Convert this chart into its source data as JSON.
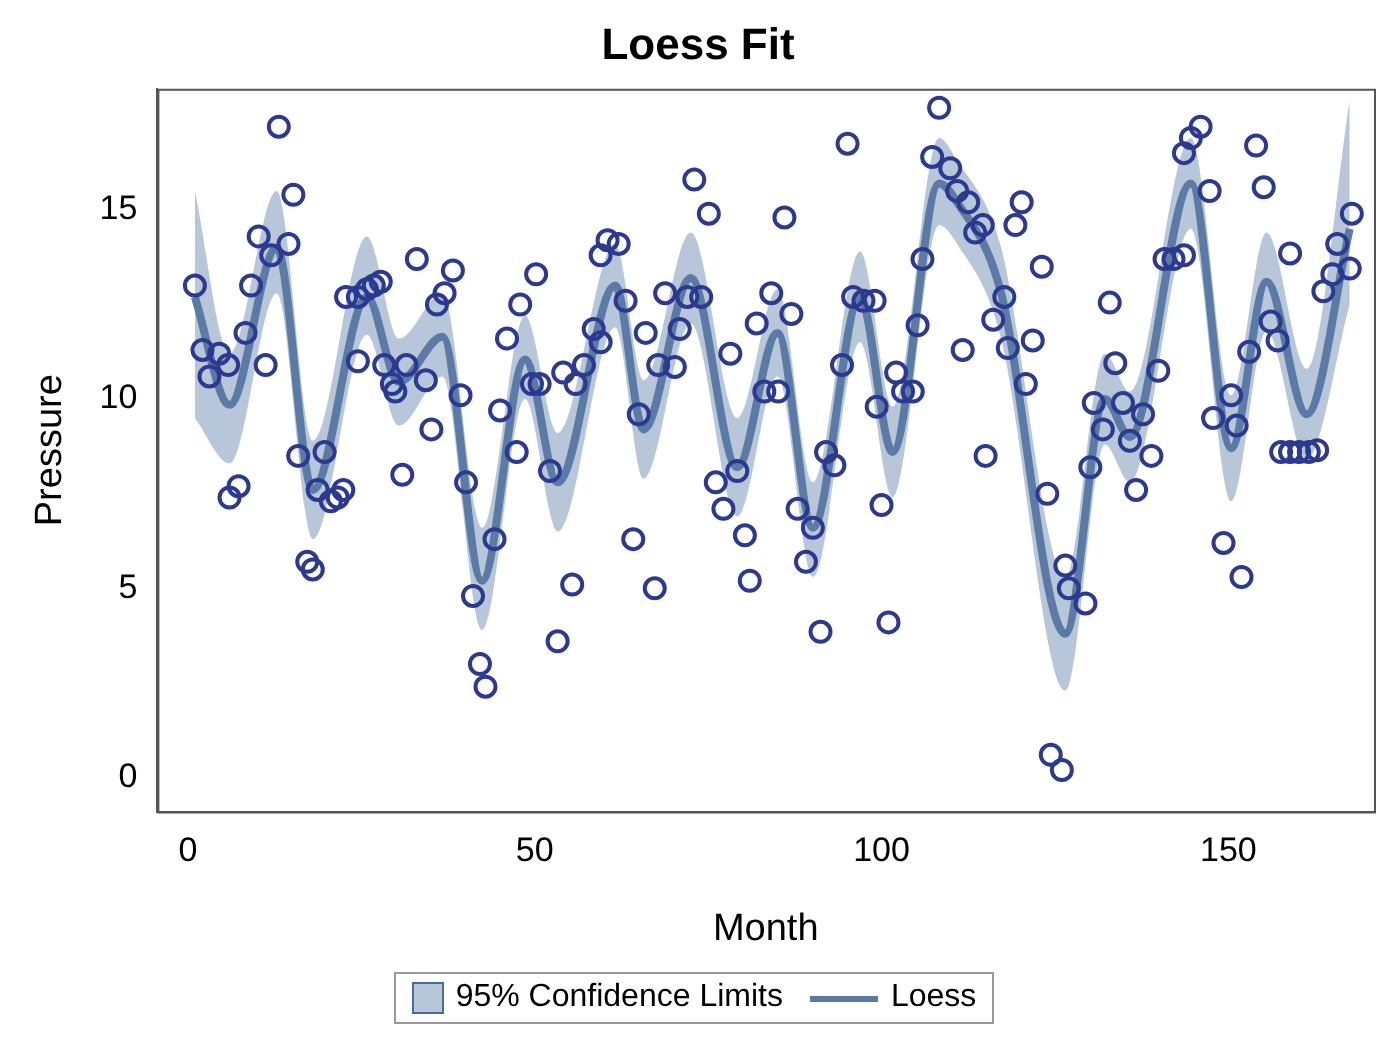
{
  "chart_data": {
    "type": "scatter",
    "title": "Loess Fit",
    "xlabel": "Month",
    "ylabel": "Pressure",
    "xlim": [
      -4.4,
      171
    ],
    "xticks": [
      0,
      50,
      100,
      150
    ],
    "ylim": [
      -0.9,
      18.2
    ],
    "yticks": [
      0,
      5,
      10,
      15
    ],
    "grid": false,
    "legend": "bottom",
    "annotations": [
      "95% Confidence Limits"
    ],
    "series": [
      {
        "color": "#2b3990",
        "marker": "circle",
        "x": [
          1.0,
          2.1,
          3.1,
          4.5,
          5.8,
          6,
          7.3,
          8.3,
          9.1,
          10.2,
          11.2,
          12,
          13.1,
          14.5,
          15.2,
          15.9,
          17.2,
          18,
          18.7,
          19.7,
          20.6,
          21.6,
          22.4,
          22.8,
          24.5,
          24.5,
          25.8,
          26.8,
          27.8,
          28.3,
          29.4,
          29.9,
          30.9,
          31.5,
          33,
          34.3,
          35.1,
          35.9,
          37,
          38.2,
          39.3,
          40.1,
          41.1,
          42.1,
          42.9,
          44.2,
          45,
          46,
          47.4,
          47.9,
          49.6,
          50.2,
          50.7,
          52.2,
          53.3,
          54.1,
          55.4,
          55.9,
          57.1,
          58.5,
          59.5,
          59.5,
          60.5,
          62.1,
          63.1,
          64.2,
          65,
          66,
          67.3,
          67.8,
          68.8,
          70.2,
          70.9,
          72,
          73,
          74,
          75.1,
          76.1,
          77.2,
          78.2,
          79.2,
          80.3,
          81,
          82,
          83.1,
          84.1,
          85.1,
          86,
          87,
          87.9,
          89.1,
          90.1,
          91.2,
          92,
          93.2,
          94.3,
          95.1,
          95.9,
          97.4,
          99,
          99.3,
          100,
          101,
          102.1,
          103.1,
          104.5,
          105.2,
          105.9,
          107.3,
          108.3,
          109.9,
          110.9,
          111.7,
          112.5,
          113.5,
          114.6,
          115,
          116.1,
          117.7,
          118.2,
          119.3,
          120.2,
          120.8,
          121.8,
          123.1,
          123.9,
          124.4,
          126,
          126.5,
          127,
          129.4,
          130.1,
          130.6,
          131.9,
          132.9,
          133.7,
          134.8,
          135.8,
          136.7,
          137.7,
          138.9,
          139.9,
          140.8,
          142.1,
          143.6,
          143.6,
          144.6,
          146,
          147.3,
          147.8,
          149.3,
          150.4,
          151.2,
          151.9,
          153,
          154,
          155.1,
          156.1,
          157.1,
          157.6,
          158.9,
          158.9,
          160.2,
          161.6,
          162.8,
          163.7,
          165,
          165.7,
          167.5,
          167.8
        ],
        "values": [
          13.0,
          11.3,
          10.6,
          11.2,
          10.9,
          7.4,
          7.7,
          11.75,
          13.0,
          14.3,
          10.9,
          13.8,
          17.2,
          14.1,
          15.4,
          8.5,
          5.7,
          5.5,
          7.6,
          8.6,
          7.3,
          7.4,
          7.6,
          12.7,
          12.7,
          11.0,
          12.9,
          13.0,
          13.1,
          10.9,
          10.4,
          10.2,
          8.0,
          10.9,
          13.7,
          10.5,
          9.2,
          12.5,
          12.8,
          13.4,
          10.1,
          7.8,
          4.8,
          3.0,
          2.4,
          6.3,
          9.7,
          11.6,
          8.6,
          12.5,
          10.4,
          13.3,
          10.4,
          8.1,
          3.6,
          10.7,
          5.1,
          10.4,
          10.9,
          11.85,
          11.5,
          13.8,
          14.2,
          14.1,
          12.6,
          6.3,
          9.6,
          11.75,
          5.0,
          10.9,
          12.8,
          10.85,
          11.85,
          12.7,
          15.8,
          12.7,
          14.9,
          7.8,
          7.1,
          11.2,
          8.1,
          6.4,
          5.2,
          12.0,
          10.2,
          12.8,
          10.2,
          14.8,
          12.25,
          7.1,
          5.7,
          6.6,
          3.85,
          8.6,
          8.25,
          10.9,
          16.75,
          12.7,
          12.6,
          12.6,
          9.8,
          7.2,
          4.1,
          10.7,
          10.2,
          10.2,
          11.95,
          13.7,
          16.4,
          17.7,
          16.1,
          15.5,
          11.3,
          15.2,
          14.4,
          14.6,
          8.5,
          12.1,
          12.7,
          11.35,
          14.6,
          15.2,
          10.4,
          11.55,
          13.5,
          7.5,
          0.6,
          0.2,
          5.6,
          5.0,
          4.6,
          8.2,
          9.9,
          9.2,
          12.55,
          10.95,
          9.9,
          8.9,
          7.6,
          9.6,
          8.5,
          10.75,
          13.7,
          13.7,
          13.8,
          16.5,
          16.9,
          17.2,
          15.5,
          9.5,
          6.2,
          10.1,
          9.3,
          5.3,
          11.25,
          16.7,
          15.6,
          12.05,
          11.55,
          8.6,
          8.6,
          13.85,
          8.6,
          8.6,
          8.65,
          12.85,
          13.3,
          14.1,
          13.45,
          14.9
        ]
      },
      {
        "type": "line",
        "name": "Loess",
        "color": "#5b7ba6",
        "marker": "none",
        "x": [
          1,
          6,
          12.8,
          18,
          25.8,
          30.4,
          36.7,
          42.4,
          48.6,
          53.3,
          61.6,
          65.7,
          72.5,
          79.2,
          85,
          90.1,
          96.9,
          101.6,
          108.3,
          110.9,
          117.1,
          126.5,
          132.2,
          135.8,
          144.6,
          150.4,
          155.5,
          161.3,
          167.5
        ],
        "lower": [
          9.5,
          8.3,
          12.8,
          6.3,
          11.7,
          9.3,
          10.6,
          3.9,
          10.0,
          6.5,
          11.9,
          7.9,
          12.0,
          6.9,
          10.6,
          5.3,
          11.5,
          7.4,
          14.6,
          14.1,
          11.7,
          2.3,
          8.8,
          7.8,
          14.5,
          7.3,
          11.8,
          8.4,
          12.5
        ],
        "upper": [
          15.5,
          11.2,
          15.5,
          8.9,
          14.3,
          11.6,
          12.8,
          6.6,
          12.2,
          9.1,
          14.1,
          10.5,
          14.4,
          9.5,
          12.9,
          7.8,
          13.9,
          9.8,
          16.9,
          16.3,
          14.1,
          5.3,
          11.2,
          10.2,
          16.9,
          10.1,
          14.4,
          10.8,
          17.9
        ],
        "values": [
          12.7,
          9.85,
          14.0,
          7.6,
          12.7,
          10.45,
          11.65,
          5.2,
          11.05,
          7.8,
          13.0,
          9.2,
          13.2,
          8.2,
          11.75,
          6.6,
          12.7,
          8.6,
          15.7,
          15.2,
          12.9,
          3.8,
          10.0,
          9.0,
          15.7,
          8.7,
          13.1,
          9.6,
          14.5
        ]
      }
    ]
  }
}
